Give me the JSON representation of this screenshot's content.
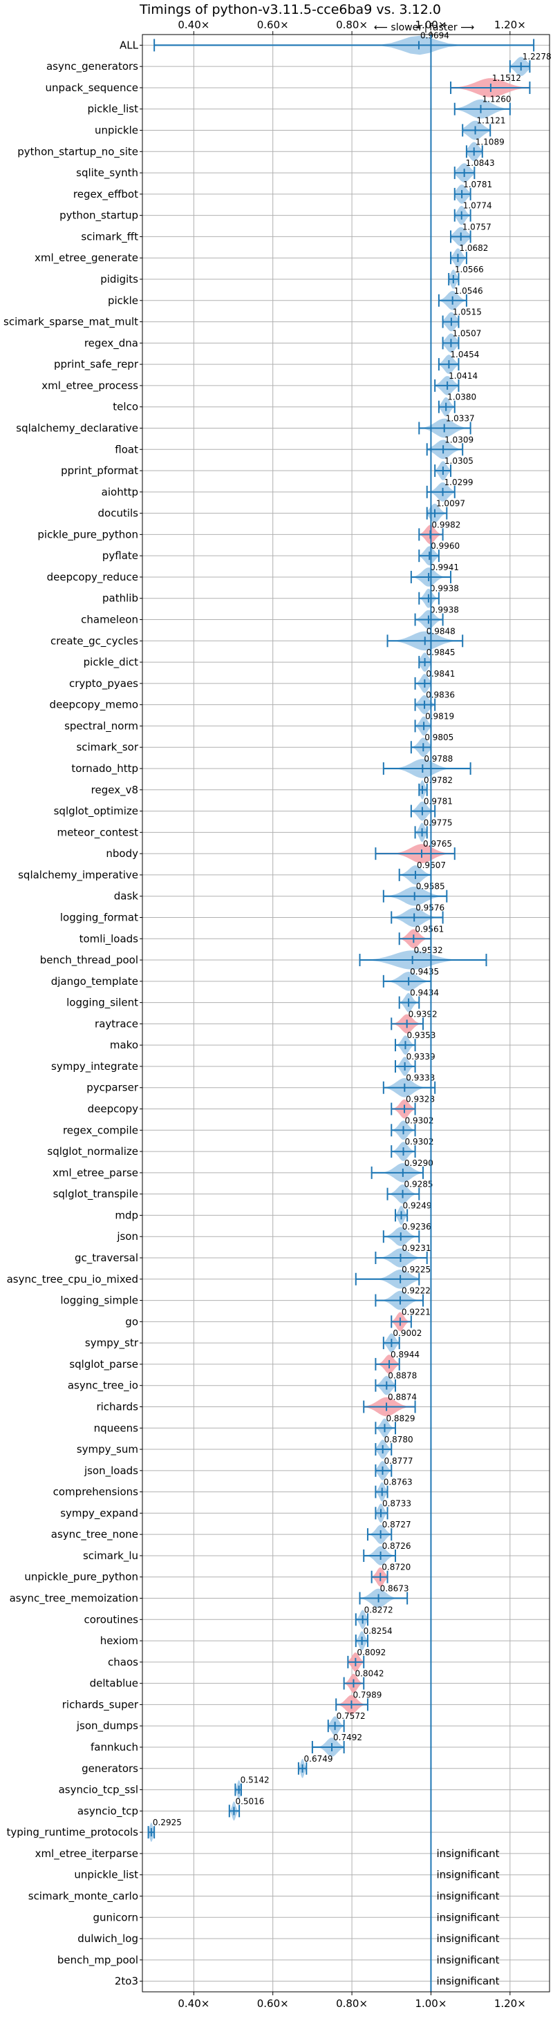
{
  "chart_data": {
    "type": "violin",
    "title": "Timings of python-v3.11.5-cce6ba9 vs. 3.12.0",
    "subtitle_left": "⟵ slower",
    "subtitle_sep": "|",
    "subtitle_right": "faster ⟶",
    "xlim": [
      0.27,
      1.3
    ],
    "xticks": [
      0.4,
      0.6,
      0.8,
      1.0,
      1.2
    ],
    "xtick_labels": [
      "0.40×",
      "0.60×",
      "0.80×",
      "1.00×",
      "1.20×"
    ],
    "reference_line": 1.0,
    "grid": true,
    "colors": {
      "normal": "#9fc8e8",
      "highlight": "#f4a0a8",
      "line": "#1f77b4",
      "axis": "#000000",
      "grid": "#b0b0b0"
    },
    "insignificant_text": "insignificant",
    "benchmarks": [
      {
        "name": "ALL",
        "value": 0.9694,
        "label": "0.9694",
        "min": 0.3,
        "max": 1.26,
        "spread": 0.09,
        "hl": false
      },
      {
        "name": "async_generators",
        "value": 1.2278,
        "label": "1.2278",
        "min": 1.2,
        "max": 1.25,
        "spread": 0.03,
        "hl": false
      },
      {
        "name": "unpack_sequence",
        "value": 1.1512,
        "label": "1.1512",
        "min": 1.05,
        "max": 1.25,
        "spread": 0.08,
        "hl": true
      },
      {
        "name": "pickle_list",
        "value": 1.126,
        "label": "1.1260",
        "min": 1.06,
        "max": 1.2,
        "spread": 0.06,
        "hl": false
      },
      {
        "name": "unpickle",
        "value": 1.1121,
        "label": "1.1121",
        "min": 1.08,
        "max": 1.15,
        "spread": 0.04,
        "hl": false
      },
      {
        "name": "python_startup_no_site",
        "value": 1.1089,
        "label": "1.1089",
        "min": 1.09,
        "max": 1.13,
        "spread": 0.025,
        "hl": false
      },
      {
        "name": "sqlite_synth",
        "value": 1.0843,
        "label": "1.0843",
        "min": 1.06,
        "max": 1.11,
        "spread": 0.03,
        "hl": false
      },
      {
        "name": "regex_effbot",
        "value": 1.0781,
        "label": "1.0781",
        "min": 1.06,
        "max": 1.1,
        "spread": 0.025,
        "hl": false
      },
      {
        "name": "python_startup",
        "value": 1.0774,
        "label": "1.0774",
        "min": 1.06,
        "max": 1.1,
        "spread": 0.02,
        "hl": false
      },
      {
        "name": "scimark_fft",
        "value": 1.0757,
        "label": "1.0757",
        "min": 1.05,
        "max": 1.1,
        "spread": 0.03,
        "hl": false
      },
      {
        "name": "xml_etree_generate",
        "value": 1.0682,
        "label": "1.0682",
        "min": 1.05,
        "max": 1.09,
        "spread": 0.02,
        "hl": false
      },
      {
        "name": "pidigits",
        "value": 1.0566,
        "label": "1.0566",
        "min": 1.045,
        "max": 1.07,
        "spread": 0.015,
        "hl": false
      },
      {
        "name": "pickle",
        "value": 1.0546,
        "label": "1.0546",
        "min": 1.02,
        "max": 1.09,
        "spread": 0.03,
        "hl": false
      },
      {
        "name": "scimark_sparse_mat_mult",
        "value": 1.0515,
        "label": "1.0515",
        "min": 1.03,
        "max": 1.07,
        "spread": 0.025,
        "hl": false
      },
      {
        "name": "regex_dna",
        "value": 1.0507,
        "label": "1.0507",
        "min": 1.03,
        "max": 1.07,
        "spread": 0.025,
        "hl": false
      },
      {
        "name": "pprint_safe_repr",
        "value": 1.0454,
        "label": "1.0454",
        "min": 1.02,
        "max": 1.07,
        "spread": 0.025,
        "hl": false
      },
      {
        "name": "xml_etree_process",
        "value": 1.0414,
        "label": "1.0414",
        "min": 1.01,
        "max": 1.07,
        "spread": 0.03,
        "hl": false
      },
      {
        "name": "telco",
        "value": 1.038,
        "label": "1.0380",
        "min": 1.02,
        "max": 1.06,
        "spread": 0.02,
        "hl": false
      },
      {
        "name": "sqlalchemy_declarative",
        "value": 1.0337,
        "label": "1.0337",
        "min": 0.97,
        "max": 1.1,
        "spread": 0.05,
        "hl": false
      },
      {
        "name": "float",
        "value": 1.0309,
        "label": "1.0309",
        "min": 0.99,
        "max": 1.08,
        "spread": 0.04,
        "hl": false
      },
      {
        "name": "pprint_pformat",
        "value": 1.0305,
        "label": "1.0305",
        "min": 1.01,
        "max": 1.05,
        "spread": 0.02,
        "hl": false
      },
      {
        "name": "aiohttp",
        "value": 1.0299,
        "label": "1.0299",
        "min": 0.99,
        "max": 1.06,
        "spread": 0.03,
        "hl": false
      },
      {
        "name": "docutils",
        "value": 1.0097,
        "label": "1.0097",
        "min": 0.99,
        "max": 1.04,
        "spread": 0.025,
        "hl": false
      },
      {
        "name": "pickle_pure_python",
        "value": 0.9982,
        "label": "0.9982",
        "min": 0.97,
        "max": 1.03,
        "spread": 0.025,
        "hl": true
      },
      {
        "name": "pyflate",
        "value": 0.996,
        "label": "0.9960",
        "min": 0.97,
        "max": 1.02,
        "spread": 0.025,
        "hl": false
      },
      {
        "name": "deepcopy_reduce",
        "value": 0.9941,
        "label": "0.9941",
        "min": 0.95,
        "max": 1.05,
        "spread": 0.035,
        "hl": false
      },
      {
        "name": "pathlib",
        "value": 0.9938,
        "label": "0.9938",
        "min": 0.97,
        "max": 1.02,
        "spread": 0.02,
        "hl": false
      },
      {
        "name": "chameleon",
        "value": 0.9938,
        "label": "0.9938",
        "min": 0.96,
        "max": 1.03,
        "spread": 0.03,
        "hl": false
      },
      {
        "name": "create_gc_cycles",
        "value": 0.9848,
        "label": "0.9848",
        "min": 0.89,
        "max": 1.08,
        "spread": 0.07,
        "hl": false
      },
      {
        "name": "pickle_dict",
        "value": 0.9845,
        "label": "0.9845",
        "min": 0.97,
        "max": 1.0,
        "spread": 0.02,
        "hl": false
      },
      {
        "name": "crypto_pyaes",
        "value": 0.9841,
        "label": "0.9841",
        "min": 0.96,
        "max": 1.0,
        "spread": 0.02,
        "hl": false
      },
      {
        "name": "deepcopy_memo",
        "value": 0.9836,
        "label": "0.9836",
        "min": 0.96,
        "max": 1.01,
        "spread": 0.025,
        "hl": false
      },
      {
        "name": "spectral_norm",
        "value": 0.9819,
        "label": "0.9819",
        "min": 0.96,
        "max": 1.0,
        "spread": 0.02,
        "hl": false
      },
      {
        "name": "scimark_sor",
        "value": 0.9805,
        "label": "0.9805",
        "min": 0.95,
        "max": 1.0,
        "spread": 0.025,
        "hl": false
      },
      {
        "name": "tornado_http",
        "value": 0.9788,
        "label": "0.9788",
        "min": 0.88,
        "max": 1.1,
        "spread": 0.06,
        "hl": false
      },
      {
        "name": "regex_v8",
        "value": 0.9782,
        "label": "0.9782",
        "min": 0.97,
        "max": 0.99,
        "spread": 0.012,
        "hl": false
      },
      {
        "name": "sqlglot_optimize",
        "value": 0.9781,
        "label": "0.9781",
        "min": 0.95,
        "max": 1.01,
        "spread": 0.025,
        "hl": false
      },
      {
        "name": "meteor_contest",
        "value": 0.9775,
        "label": "0.9775",
        "min": 0.96,
        "max": 0.99,
        "spread": 0.015,
        "hl": false
      },
      {
        "name": "nbody",
        "value": 0.9765,
        "label": "0.9765",
        "min": 0.86,
        "max": 1.06,
        "spread": 0.06,
        "hl": true
      },
      {
        "name": "sqlalchemy_imperative",
        "value": 0.9607,
        "label": "0.9607",
        "min": 0.92,
        "max": 1.0,
        "spread": 0.035,
        "hl": false
      },
      {
        "name": "dask",
        "value": 0.9585,
        "label": "0.9585",
        "min": 0.88,
        "max": 1.04,
        "spread": 0.06,
        "hl": false
      },
      {
        "name": "logging_format",
        "value": 0.9576,
        "label": "0.9576",
        "min": 0.9,
        "max": 1.03,
        "spread": 0.05,
        "hl": false
      },
      {
        "name": "tomli_loads",
        "value": 0.9561,
        "label": "0.9561",
        "min": 0.92,
        "max": 1.0,
        "spread": 0.03,
        "hl": true
      },
      {
        "name": "bench_thread_pool",
        "value": 0.9532,
        "label": "0.9532",
        "min": 0.82,
        "max": 1.14,
        "spread": 0.1,
        "hl": false
      },
      {
        "name": "django_template",
        "value": 0.9435,
        "label": "0.9435",
        "min": 0.88,
        "max": 1.0,
        "spread": 0.045,
        "hl": false
      },
      {
        "name": "logging_silent",
        "value": 0.9434,
        "label": "0.9434",
        "min": 0.92,
        "max": 0.97,
        "spread": 0.02,
        "hl": false
      },
      {
        "name": "raytrace",
        "value": 0.9392,
        "label": "0.9392",
        "min": 0.9,
        "max": 0.98,
        "spread": 0.03,
        "hl": true
      },
      {
        "name": "mako",
        "value": 0.9353,
        "label": "0.9353",
        "min": 0.91,
        "max": 0.96,
        "spread": 0.02,
        "hl": false
      },
      {
        "name": "sympy_integrate",
        "value": 0.9339,
        "label": "0.9339",
        "min": 0.91,
        "max": 0.96,
        "spread": 0.02,
        "hl": false
      },
      {
        "name": "pycparser",
        "value": 0.9333,
        "label": "0.9333",
        "min": 0.88,
        "max": 1.01,
        "spread": 0.045,
        "hl": false
      },
      {
        "name": "deepcopy",
        "value": 0.9328,
        "label": "0.9328",
        "min": 0.9,
        "max": 0.96,
        "spread": 0.025,
        "hl": true
      },
      {
        "name": "regex_compile",
        "value": 0.9302,
        "label": "0.9302",
        "min": 0.9,
        "max": 0.96,
        "spread": 0.025,
        "hl": false
      },
      {
        "name": "sqlglot_normalize",
        "value": 0.9302,
        "label": "0.9302",
        "min": 0.9,
        "max": 0.96,
        "spread": 0.025,
        "hl": false
      },
      {
        "name": "xml_etree_parse",
        "value": 0.929,
        "label": "0.9290",
        "min": 0.85,
        "max": 0.98,
        "spread": 0.045,
        "hl": false
      },
      {
        "name": "sqlglot_transpile",
        "value": 0.9285,
        "label": "0.9285",
        "min": 0.89,
        "max": 0.97,
        "spread": 0.03,
        "hl": false
      },
      {
        "name": "mdp",
        "value": 0.9249,
        "label": "0.9249",
        "min": 0.91,
        "max": 0.94,
        "spread": 0.015,
        "hl": false
      },
      {
        "name": "json",
        "value": 0.9236,
        "label": "0.9236",
        "min": 0.88,
        "max": 0.97,
        "spread": 0.035,
        "hl": false
      },
      {
        "name": "gc_traversal",
        "value": 0.9231,
        "label": "0.9231",
        "min": 0.86,
        "max": 0.99,
        "spread": 0.045,
        "hl": false
      },
      {
        "name": "async_tree_cpu_io_mixed",
        "value": 0.9225,
        "label": "0.9225",
        "min": 0.81,
        "max": 0.97,
        "spread": 0.05,
        "hl": false
      },
      {
        "name": "logging_simple",
        "value": 0.9222,
        "label": "0.9222",
        "min": 0.86,
        "max": 0.98,
        "spread": 0.04,
        "hl": false
      },
      {
        "name": "go",
        "value": 0.9221,
        "label": "0.9221",
        "min": 0.9,
        "max": 0.95,
        "spread": 0.02,
        "hl": true
      },
      {
        "name": "sympy_str",
        "value": 0.9002,
        "label": "0.9002",
        "min": 0.88,
        "max": 0.92,
        "spread": 0.02,
        "hl": false
      },
      {
        "name": "sqlglot_parse",
        "value": 0.8944,
        "label": "0.8944",
        "min": 0.86,
        "max": 0.92,
        "spread": 0.025,
        "hl": true
      },
      {
        "name": "async_tree_io",
        "value": 0.8878,
        "label": "0.8878",
        "min": 0.86,
        "max": 0.91,
        "spread": 0.025,
        "hl": false
      },
      {
        "name": "richards",
        "value": 0.8874,
        "label": "0.8874",
        "min": 0.83,
        "max": 0.96,
        "spread": 0.05,
        "hl": true
      },
      {
        "name": "nqueens",
        "value": 0.8829,
        "label": "0.8829",
        "min": 0.86,
        "max": 0.91,
        "spread": 0.02,
        "hl": false
      },
      {
        "name": "sympy_sum",
        "value": 0.878,
        "label": "0.8780",
        "min": 0.86,
        "max": 0.9,
        "spread": 0.02,
        "hl": false
      },
      {
        "name": "json_loads",
        "value": 0.8777,
        "label": "0.8777",
        "min": 0.86,
        "max": 0.9,
        "spread": 0.02,
        "hl": false
      },
      {
        "name": "comprehensions",
        "value": 0.8763,
        "label": "0.8763",
        "min": 0.86,
        "max": 0.89,
        "spread": 0.015,
        "hl": false
      },
      {
        "name": "sympy_expand",
        "value": 0.8733,
        "label": "0.8733",
        "min": 0.86,
        "max": 0.89,
        "spread": 0.015,
        "hl": false
      },
      {
        "name": "async_tree_none",
        "value": 0.8727,
        "label": "0.8727",
        "min": 0.84,
        "max": 0.9,
        "spread": 0.025,
        "hl": false
      },
      {
        "name": "scimark_lu",
        "value": 0.8726,
        "label": "0.8726",
        "min": 0.83,
        "max": 0.91,
        "spread": 0.03,
        "hl": false
      },
      {
        "name": "unpickle_pure_python",
        "value": 0.872,
        "label": "0.8720",
        "min": 0.85,
        "max": 0.89,
        "spread": 0.02,
        "hl": true
      },
      {
        "name": "async_tree_memoization",
        "value": 0.8673,
        "label": "0.8673",
        "min": 0.82,
        "max": 0.94,
        "spread": 0.04,
        "hl": false
      },
      {
        "name": "coroutines",
        "value": 0.8272,
        "label": "0.8272",
        "min": 0.81,
        "max": 0.84,
        "spread": 0.015,
        "hl": false
      },
      {
        "name": "hexiom",
        "value": 0.8254,
        "label": "0.8254",
        "min": 0.81,
        "max": 0.84,
        "spread": 0.015,
        "hl": false
      },
      {
        "name": "chaos",
        "value": 0.8092,
        "label": "0.8092",
        "min": 0.79,
        "max": 0.83,
        "spread": 0.02,
        "hl": true
      },
      {
        "name": "deltablue",
        "value": 0.8042,
        "label": "0.8042",
        "min": 0.78,
        "max": 0.83,
        "spread": 0.02,
        "hl": true
      },
      {
        "name": "richards_super",
        "value": 0.7989,
        "label": "0.7989",
        "min": 0.76,
        "max": 0.84,
        "spread": 0.03,
        "hl": true
      },
      {
        "name": "json_dumps",
        "value": 0.7572,
        "label": "0.7572",
        "min": 0.74,
        "max": 0.78,
        "spread": 0.02,
        "hl": false
      },
      {
        "name": "fannkuch",
        "value": 0.7492,
        "label": "0.7492",
        "min": 0.7,
        "max": 0.78,
        "spread": 0.03,
        "hl": false
      },
      {
        "name": "generators",
        "value": 0.6749,
        "label": "0.6749",
        "min": 0.665,
        "max": 0.685,
        "spread": 0.01,
        "hl": false
      },
      {
        "name": "asyncio_tcp_ssl",
        "value": 0.5142,
        "label": "0.5142",
        "min": 0.505,
        "max": 0.52,
        "spread": 0.008,
        "hl": false
      },
      {
        "name": "asyncio_tcp",
        "value": 0.5016,
        "label": "0.5016",
        "min": 0.49,
        "max": 0.515,
        "spread": 0.01,
        "hl": false
      },
      {
        "name": "typing_runtime_protocols",
        "value": 0.2925,
        "label": "0.2925",
        "min": 0.285,
        "max": 0.3,
        "spread": 0.008,
        "hl": false
      },
      {
        "name": "xml_etree_iterparse",
        "value": null,
        "label": "",
        "insignificant": true
      },
      {
        "name": "unpickle_list",
        "value": null,
        "label": "",
        "insignificant": true
      },
      {
        "name": "scimark_monte_carlo",
        "value": null,
        "label": "",
        "insignificant": true
      },
      {
        "name": "gunicorn",
        "value": null,
        "label": "",
        "insignificant": true
      },
      {
        "name": "dulwich_log",
        "value": null,
        "label": "",
        "insignificant": true
      },
      {
        "name": "bench_mp_pool",
        "value": null,
        "label": "",
        "insignificant": true
      },
      {
        "name": "2to3",
        "value": null,
        "label": "",
        "insignificant": true
      }
    ]
  }
}
